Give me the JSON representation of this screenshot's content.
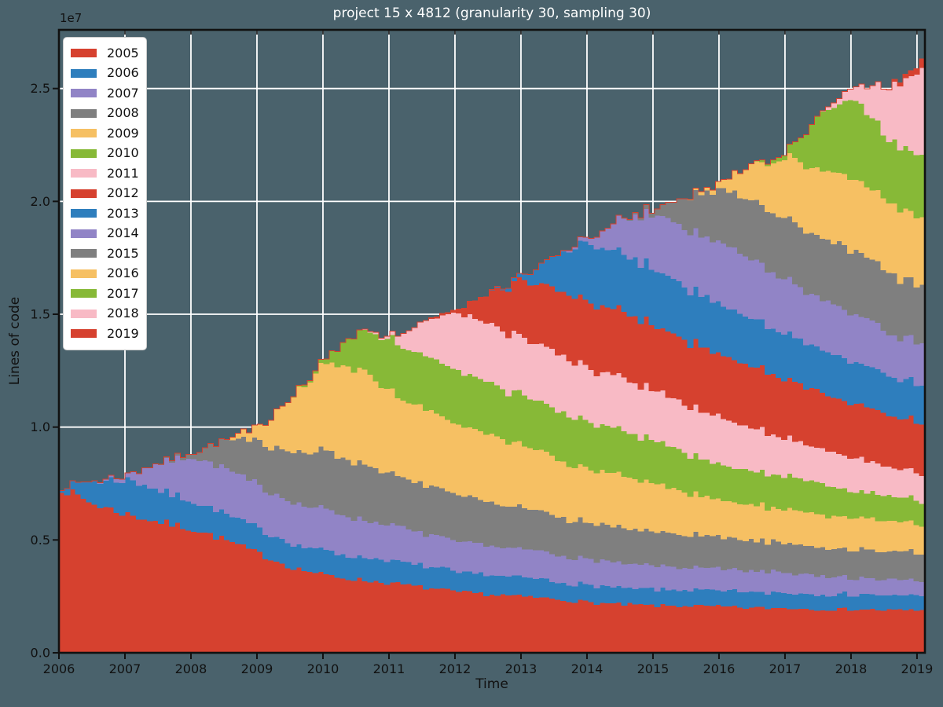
{
  "colors": {
    "background": "#4a626c",
    "grid": "#ffffff",
    "spine": "#111111",
    "tick_label": "#111111",
    "title_text": "#ffffff",
    "axis_label_text": "#111111",
    "legend_bg": "#ffffff",
    "legend_border": "#cccccc",
    "legend_text": "#111111"
  },
  "chart_data": {
    "type": "area",
    "stacked": true,
    "title": "project 15 x 4812 (granularity 30, sampling 30)",
    "xlabel": "Time",
    "ylabel": "Lines of code",
    "y_offset_text": "1e7",
    "y_unit_multiplier": 10000000,
    "xlim": [
      2006,
      2019.12
    ],
    "ylim": [
      0,
      2.76
    ],
    "xticks": [
      2006,
      2007,
      2008,
      2009,
      2010,
      2011,
      2012,
      2013,
      2014,
      2015,
      2016,
      2017,
      2018,
      2019
    ],
    "yticks": [
      0.0,
      0.5,
      1.0,
      1.5,
      2.0,
      2.5
    ],
    "grid": true,
    "legend_position": "upper left",
    "x": [
      2006,
      2006.5,
      2007,
      2007.5,
      2008,
      2008.5,
      2009,
      2009.5,
      2010,
      2010.5,
      2011,
      2011.5,
      2012,
      2012.5,
      2013,
      2013.5,
      2014,
      2014.5,
      2015,
      2015.5,
      2016,
      2016.5,
      2017,
      2017.5,
      2018,
      2018.5,
      2019,
      2019.1
    ],
    "series": [
      {
        "name": "2005",
        "color": "#d6412f",
        "values": [
          0.73,
          0.66,
          0.615,
          0.58,
          0.55,
          0.5,
          0.44,
          0.38,
          0.345,
          0.325,
          0.31,
          0.29,
          0.27,
          0.26,
          0.25,
          0.24,
          0.225,
          0.215,
          0.21,
          0.21,
          0.205,
          0.2,
          0.2,
          0.195,
          0.195,
          0.19,
          0.19,
          0.19
        ]
      },
      {
        "name": "2006",
        "color": "#2e7ebd",
        "values": [
          0.01,
          0.1,
          0.155,
          0.14,
          0.12,
          0.115,
          0.11,
          0.105,
          0.105,
          0.1,
          0.1,
          0.095,
          0.088,
          0.085,
          0.082,
          0.078,
          0.075,
          0.073,
          0.072,
          0.071,
          0.07,
          0.069,
          0.068,
          0.067,
          0.066,
          0.065,
          0.065,
          0.065
        ]
      },
      {
        "name": "2007",
        "color": "#9184c6",
        "values": [
          0,
          0,
          0.02,
          0.12,
          0.2,
          0.2,
          0.19,
          0.185,
          0.18,
          0.17,
          0.155,
          0.145,
          0.136,
          0.13,
          0.125,
          0.118,
          0.112,
          0.108,
          0.105,
          0.1,
          0.098,
          0.094,
          0.09,
          0.085,
          0.075,
          0.07,
          0.065,
          0.065
        ]
      },
      {
        "name": "2008",
        "color": "#7f7f7f",
        "values": [
          0,
          0,
          0,
          0,
          0.02,
          0.13,
          0.19,
          0.22,
          0.26,
          0.25,
          0.23,
          0.215,
          0.2,
          0.19,
          0.18,
          0.17,
          0.161,
          0.155,
          0.15,
          0.145,
          0.14,
          0.135,
          0.13,
          0.128,
          0.126,
          0.125,
          0.125,
          0.125
        ]
      },
      {
        "name": "2009",
        "color": "#f6c063",
        "values": [
          0,
          0,
          0,
          0,
          0,
          0,
          0.06,
          0.25,
          0.385,
          0.42,
          0.36,
          0.33,
          0.315,
          0.3,
          0.27,
          0.255,
          0.241,
          0.23,
          0.21,
          0.185,
          0.164,
          0.155,
          0.15,
          0.145,
          0.145,
          0.132,
          0.126,
          0.126
        ]
      },
      {
        "name": "2010",
        "color": "#87b937",
        "values": [
          0,
          0,
          0,
          0,
          0,
          0,
          0,
          0,
          0.02,
          0.17,
          0.235,
          0.235,
          0.235,
          0.225,
          0.22,
          0.215,
          0.21,
          0.2,
          0.19,
          0.175,
          0.157,
          0.15,
          0.145,
          0.14,
          0.12,
          0.11,
          0.105,
          0.105
        ]
      },
      {
        "name": "2011",
        "color": "#f8bac5",
        "values": [
          0,
          0,
          0,
          0,
          0,
          0,
          0,
          0,
          0,
          0,
          0.01,
          0.15,
          0.255,
          0.26,
          0.255,
          0.25,
          0.235,
          0.23,
          0.225,
          0.215,
          0.21,
          0.19,
          0.165,
          0.15,
          0.15,
          0.13,
          0.12,
          0.12
        ]
      },
      {
        "name": "2012",
        "color": "#d6412f",
        "values": [
          0,
          0,
          0,
          0,
          0,
          0,
          0,
          0,
          0,
          0,
          0,
          0,
          0.01,
          0.14,
          0.26,
          0.28,
          0.297,
          0.29,
          0.285,
          0.283,
          0.28,
          0.27,
          0.26,
          0.25,
          0.24,
          0.23,
          0.225,
          0.225
        ]
      },
      {
        "name": "2013",
        "color": "#2e7ebd",
        "values": [
          0,
          0,
          0,
          0,
          0,
          0,
          0,
          0,
          0,
          0,
          0,
          0,
          0,
          0,
          0.02,
          0.15,
          0.266,
          0.26,
          0.25,
          0.235,
          0.22,
          0.21,
          0.2,
          0.19,
          0.185,
          0.172,
          0.168,
          0.168
        ]
      },
      {
        "name": "2014",
        "color": "#9184c6",
        "values": [
          0,
          0,
          0,
          0,
          0,
          0,
          0,
          0,
          0,
          0,
          0,
          0,
          0,
          0,
          0,
          0,
          0.02,
          0.16,
          0.25,
          0.26,
          0.273,
          0.26,
          0.24,
          0.225,
          0.22,
          0.19,
          0.185,
          0.185
        ]
      },
      {
        "name": "2015",
        "color": "#7f7f7f",
        "values": [
          0,
          0,
          0,
          0,
          0,
          0,
          0,
          0,
          0,
          0,
          0,
          0,
          0,
          0,
          0,
          0,
          0,
          0,
          0.02,
          0.15,
          0.241,
          0.26,
          0.27,
          0.275,
          0.28,
          0.27,
          0.255,
          0.255
        ]
      },
      {
        "name": "2016",
        "color": "#f6c063",
        "values": [
          0,
          0,
          0,
          0,
          0,
          0,
          0,
          0,
          0,
          0,
          0,
          0,
          0,
          0,
          0,
          0,
          0,
          0,
          0,
          0,
          0.03,
          0.17,
          0.27,
          0.3,
          0.32,
          0.31,
          0.3,
          0.3
        ]
      },
      {
        "name": "2017",
        "color": "#87b937",
        "values": [
          0,
          0,
          0,
          0,
          0,
          0,
          0,
          0,
          0,
          0,
          0,
          0,
          0,
          0,
          0,
          0,
          0,
          0,
          0,
          0,
          0,
          0,
          0.02,
          0.25,
          0.36,
          0.28,
          0.27,
          0.27
        ]
      },
      {
        "name": "2018",
        "color": "#f8bac5",
        "values": [
          0,
          0,
          0,
          0,
          0,
          0,
          0,
          0,
          0,
          0,
          0,
          0,
          0,
          0,
          0,
          0,
          0,
          0,
          0,
          0,
          0,
          0,
          0,
          0,
          0.05,
          0.22,
          0.37,
          0.38
        ]
      },
      {
        "name": "2019",
        "color": "#d6412f",
        "values": [
          0,
          0,
          0,
          0,
          0,
          0,
          0,
          0,
          0,
          0,
          0,
          0,
          0,
          0,
          0,
          0,
          0,
          0,
          0,
          0,
          0,
          0,
          0,
          0,
          0,
          0,
          0.03,
          0.045
        ]
      }
    ]
  }
}
